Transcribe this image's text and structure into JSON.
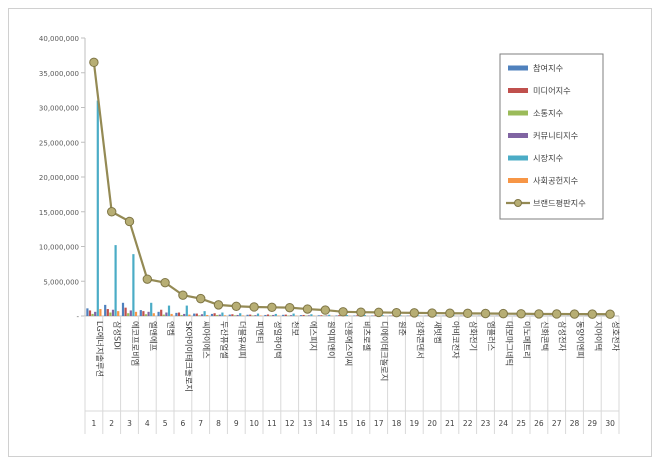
{
  "chart_data": {
    "type": "bar",
    "y_ticks": [
      "40,000,000",
      "35,000,000",
      "30,000,000",
      "25,000,000",
      "20,000,000",
      "15,000,000",
      "10,000,000",
      "5,000,000",
      "-"
    ],
    "ylim": [
      0,
      40000000
    ],
    "categories": [
      "LG에너지솔루션",
      "삼성SDI",
      "에코프로비엠",
      "엘앤에프",
      "엔켐",
      "SK아이이테크놀로지",
      "씨아이에스",
      "두산퓨얼셀",
      "더블유씨피",
      "피엔티",
      "성일하이텍",
      "천보",
      "에스피지",
      "원익피앤이",
      "신흥에스이씨",
      "비츠로셀",
      "디에이테크놀로지",
      "원준",
      "삼화콘덴서",
      "새빗켐",
      "아비코전자",
      "삼화전기",
      "엠플러스",
      "대보마그네틱",
      "이노메트리",
      "신화콘텍",
      "삼성전자",
      "동양이엔피",
      "지아이텍",
      "성호전자"
    ],
    "ranks": [
      "1",
      "2",
      "3",
      "4",
      "5",
      "6",
      "7",
      "8",
      "9",
      "10",
      "11",
      "12",
      "13",
      "14",
      "15",
      "16",
      "17",
      "18",
      "19",
      "20",
      "21",
      "22",
      "23",
      "24",
      "25",
      "26",
      "27",
      "28",
      "29",
      "30"
    ],
    "series": [
      {
        "name": "참여지수",
        "color": "#4f81bd",
        "values": [
          1100000,
          1600000,
          1900000,
          850000,
          600000,
          450000,
          350000,
          300000,
          200000,
          180000,
          150000,
          170000,
          130000,
          100000,
          80000,
          70000,
          60000,
          50000,
          45000,
          40000,
          40000,
          35000,
          30000,
          30000,
          28000,
          25000,
          22000,
          20000,
          18000,
          15000
        ]
      },
      {
        "name": "미디어지수",
        "color": "#c0504d",
        "values": [
          800000,
          1000000,
          1200000,
          700000,
          900000,
          500000,
          350000,
          400000,
          250000,
          200000,
          220000,
          200000,
          150000,
          110000,
          120000,
          90000,
          80000,
          70000,
          60000,
          50000,
          55000,
          45000,
          40000,
          40000,
          35000,
          30000,
          28000,
          25000,
          22000,
          20000
        ]
      },
      {
        "name": "소통지수",
        "color": "#9bbb59",
        "values": [
          300000,
          500000,
          400000,
          250000,
          200000,
          150000,
          100000,
          150000,
          100000,
          80000,
          90000,
          70000,
          60000,
          50000,
          40000,
          40000,
          30000,
          25000,
          20000,
          20000,
          18000,
          15000,
          15000,
          12000,
          12000,
          10000,
          10000,
          9000,
          8000,
          7000
        ]
      },
      {
        "name": "커뮤니티지수",
        "color": "#8064a2",
        "values": [
          600000,
          900000,
          800000,
          600000,
          500000,
          300000,
          250000,
          200000,
          150000,
          120000,
          150000,
          120000,
          100000,
          80000,
          70000,
          60000,
          50000,
          40000,
          35000,
          30000,
          30000,
          25000,
          22000,
          20000,
          18000,
          16000,
          15000,
          14000,
          12000,
          10000
        ]
      },
      {
        "name": "시장지수",
        "color": "#4bacc6",
        "values": [
          31000000,
          10200000,
          8900000,
          1900000,
          1500000,
          1500000,
          700000,
          500000,
          400000,
          350000,
          300000,
          350000,
          250000,
          180000,
          150000,
          140000,
          120000,
          100000,
          90000,
          80000,
          70000,
          60000,
          55000,
          50000,
          45000,
          40000,
          38000,
          35000,
          30000,
          25000
        ]
      },
      {
        "name": "사회공헌지수",
        "color": "#f79646",
        "values": [
          1000000,
          700000,
          600000,
          400000,
          300000,
          200000,
          150000,
          100000,
          80000,
          70000,
          60000,
          50000,
          40000,
          30000,
          25000,
          20000,
          18000,
          15000,
          12000,
          10000,
          10000,
          8000,
          7000,
          6000,
          5000,
          5000,
          4000,
          4000,
          3000,
          3000
        ]
      },
      {
        "name": "브랜드평판지수",
        "color": "#948a54",
        "type": "line",
        "values": [
          36500000,
          15000000,
          13600000,
          5300000,
          4800000,
          3000000,
          2500000,
          1600000,
          1400000,
          1300000,
          1250000,
          1200000,
          1000000,
          850000,
          600000,
          550000,
          520000,
          480000,
          450000,
          420000,
          400000,
          380000,
          360000,
          340000,
          320000,
          300000,
          290000,
          280000,
          270000,
          260000
        ]
      }
    ],
    "legend": "right"
  }
}
